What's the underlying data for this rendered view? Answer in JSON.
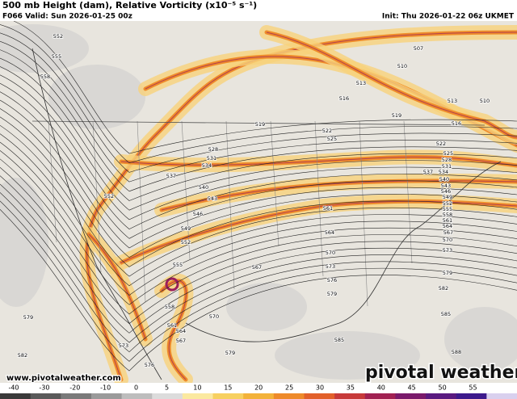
{
  "header": {
    "title": "500 mb Height (dam), Relative Vorticity (x10⁻⁵ s⁻¹)",
    "valid": "F066 Valid: Sun 2026-01-25 00z",
    "init": "Init: Thu 2026-01-22 06z UKMET"
  },
  "contour_labels": [
    552,
    555,
    558,
    507,
    510,
    513,
    516,
    519,
    513,
    510,
    516,
    519,
    522,
    525,
    528,
    531,
    534,
    537,
    540,
    543,
    546,
    549,
    552,
    552,
    555,
    558,
    561,
    564,
    567,
    570,
    573,
    576,
    579,
    582,
    579,
    570,
    573,
    576,
    579,
    582,
    585,
    588,
    585,
    567,
    561,
    564,
    522,
    525,
    528,
    531,
    534,
    537,
    540,
    543,
    546,
    549,
    552,
    555,
    558,
    561,
    564,
    567,
    570,
    573,
    579
  ],
  "footer": {
    "website": "www.pivotalweather.com",
    "brand": "pivotal weather"
  },
  "colorbar": {
    "ticks": [
      -40,
      -30,
      -20,
      -10,
      0,
      5,
      10,
      15,
      20,
      25,
      30,
      35,
      40,
      45,
      50,
      55
    ]
  }
}
